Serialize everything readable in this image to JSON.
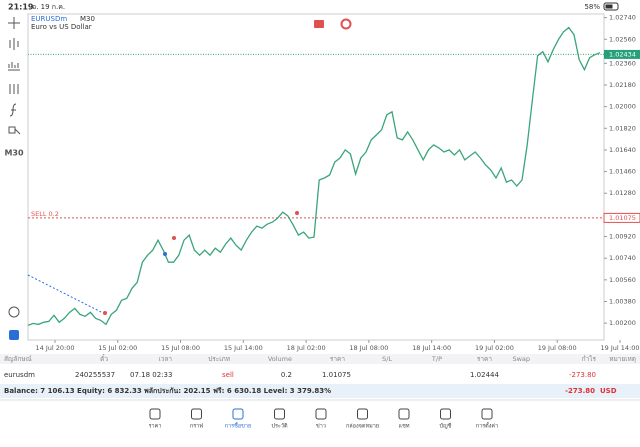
{
  "status": {
    "time": "21:19",
    "date": "อ. 19 ก.ค.",
    "battery": "58%"
  },
  "sidebar": {
    "timeframe": "M30"
  },
  "chart_data": {
    "type": "line",
    "symbol": "EURUSDm",
    "timeframe": "M30",
    "description": "Euro vs US Dollar",
    "color": "#3aa57a",
    "values": [
      1.00182,
      1.00198,
      1.0019,
      1.00207,
      1.00215,
      1.00265,
      1.00207,
      1.0024,
      1.0029,
      1.00323,
      1.00273,
      1.00257,
      1.0029,
      1.0024,
      1.00223,
      1.0019,
      1.00273,
      1.00307,
      1.0039,
      1.00407,
      1.0049,
      1.0054,
      1.00707,
      1.00765,
      1.00807,
      1.0089,
      1.00807,
      1.00707,
      1.00707,
      1.00765,
      1.0089,
      1.00932,
      1.00807,
      1.00765,
      1.00807,
      1.00765,
      1.00823,
      1.0079,
      1.00857,
      1.00907,
      1.00848,
      1.00807,
      1.0089,
      1.00957,
      1.01007,
      1.0099,
      1.01023,
      1.0104,
      1.01073,
      1.01123,
      1.0109,
      1.01015,
      1.00932,
      1.00957,
      1.00907,
      1.00915,
      1.0139,
      1.01407,
      1.01432,
      1.0154,
      1.01573,
      1.0164,
      1.01607,
      1.0144,
      1.01573,
      1.01623,
      1.01723,
      1.01765,
      1.01807,
      1.01932,
      1.01957,
      1.0174,
      1.01723,
      1.0179,
      1.01723,
      1.0164,
      1.01557,
      1.0164,
      1.01682,
      1.01657,
      1.01623,
      1.0164,
      1.01598,
      1.0164,
      1.01557,
      1.0159,
      1.01623,
      1.01573,
      1.01515,
      1.01473,
      1.01407,
      1.0149,
      1.01373,
      1.0139,
      1.0134,
      1.0139,
      1.01682,
      1.02057,
      1.02423,
      1.02457,
      1.02373,
      1.02473,
      1.02557,
      1.02623,
      1.02657,
      1.02598,
      1.0239,
      1.02307,
      1.02407,
      1.02432,
      1.02448
    ],
    "ylim": [
      1.0006,
      1.0277
    ],
    "yticks": [
      {
        "value": 1.0274,
        "label": "1.02740"
      },
      {
        "value": 1.0256,
        "label": "1.02560"
      },
      {
        "value": 1.0236,
        "label": "1.02360"
      },
      {
        "value": 1.0218,
        "label": "1.02180"
      },
      {
        "value": 1.02,
        "label": "1.02000"
      },
      {
        "value": 1.0182,
        "label": "1.01820"
      },
      {
        "value": 1.0164,
        "label": "1.01640"
      },
      {
        "value": 1.0146,
        "label": "1.01460"
      },
      {
        "value": 1.0128,
        "label": "1.01280"
      },
      {
        "value": 1.0092,
        "label": "1.00920"
      },
      {
        "value": 1.0074,
        "label": "1.00740"
      },
      {
        "value": 1.0056,
        "label": "1.00560"
      },
      {
        "value": 1.0038,
        "label": "1.00380"
      },
      {
        "value": 1.002,
        "label": "1.00200"
      }
    ],
    "xticks": [
      "14 Jul 20:00",
      "15 Jul 02:00",
      "15 Jul 08:00",
      "15 Jul 14:00",
      "18 Jul 02:00",
      "18 Jul 08:00",
      "18 Jul 14:00",
      "19 Jul 02:00",
      "19 Jul 08:00",
      "19 Jul 14:00"
    ],
    "current_price": {
      "value": 1.02434,
      "label": "1.02434"
    },
    "sell_order": {
      "label": "SELL 0.2",
      "price": {
        "value": 1.01075,
        "label": "1.01075"
      }
    }
  },
  "table": {
    "columns": [
      "สัญลักษณ์",
      "ตั๋ว",
      "เวลา",
      "ประเภท",
      "Volume",
      "ราคา",
      "S/L",
      "T/P",
      "ราคา",
      "Swap",
      "กำไร",
      "หมายเหตุ"
    ],
    "row": {
      "symbol": "eurusdm",
      "ticket": "240255537",
      "time": "07.18 02:33",
      "type": "sell",
      "volume": "0.2",
      "open_price": "1.01075",
      "current_price": "1.02444",
      "profit": "-273.80"
    },
    "summary": "Balance: 7 106.13 Equity: 6 832.33 พลักประกัน: 202.15 ฟรี: 6 630.18 Level: 3 379.83%",
    "total": "-273.80",
    "currency": "USD"
  },
  "nav": [
    "ราคา",
    "กราฟ",
    "การซื้อขาย",
    "ประวัติ",
    "ข่าว",
    "กล่องจดหมาย",
    "แชท",
    "บัญชี",
    "การตั้งค่า"
  ]
}
